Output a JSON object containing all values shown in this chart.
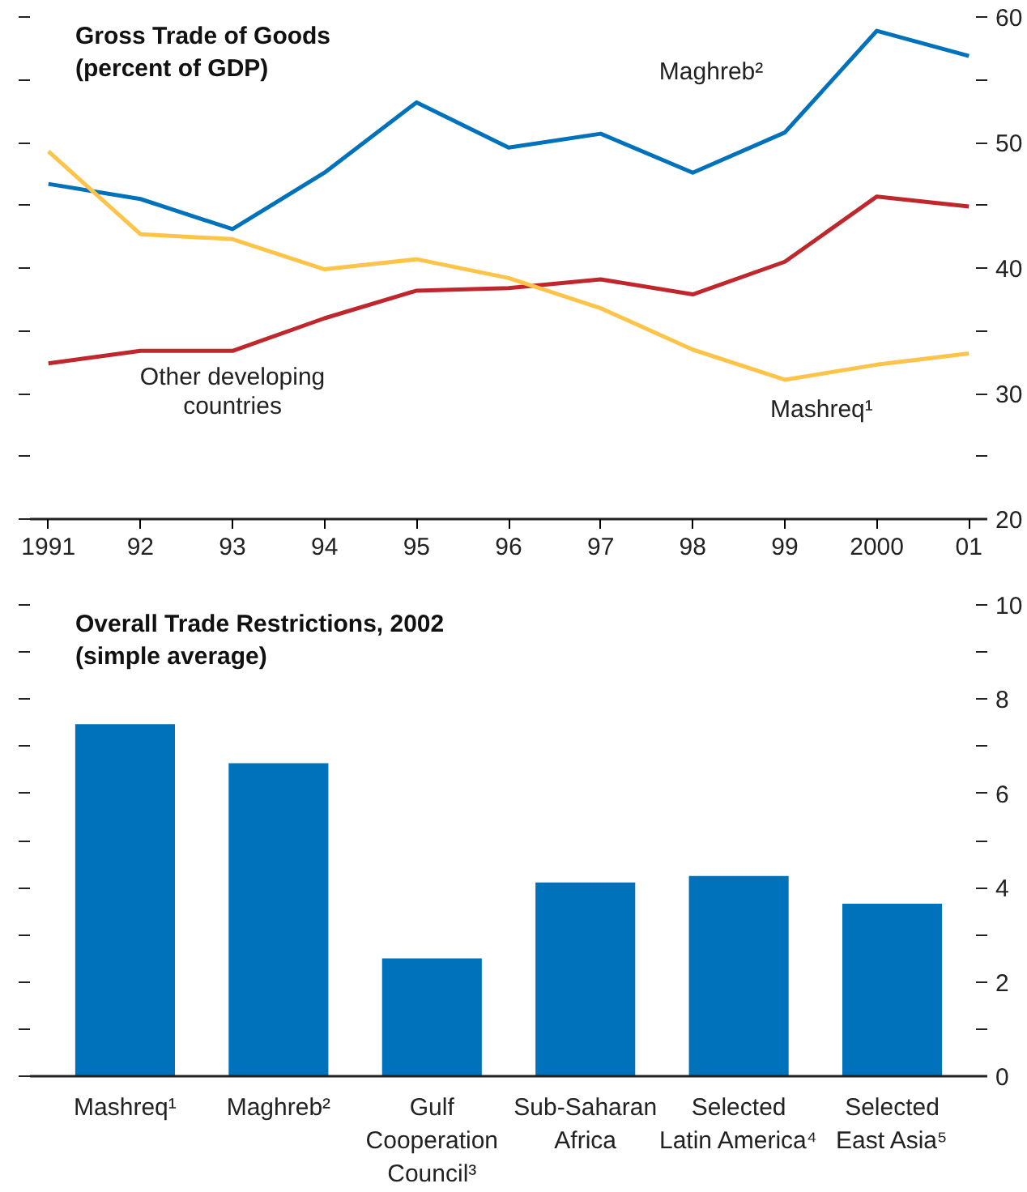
{
  "chart_data": [
    {
      "type": "line",
      "title": "Gross Trade of Goods",
      "subtitle": "(percent of GDP)",
      "x": [
        1991,
        1992,
        1993,
        1994,
        1995,
        1996,
        1997,
        1998,
        1999,
        2000,
        2001
      ],
      "series": [
        {
          "name": "Maghreb²",
          "color": "#0072bc",
          "values": [
            46.7,
            45.5,
            43.1,
            47.6,
            53.2,
            49.6,
            50.7,
            47.6,
            50.8,
            58.9,
            56.9
          ]
        },
        {
          "name": "Other developing countries",
          "color": "#c0272d",
          "values": [
            32.4,
            33.4,
            33.4,
            36.0,
            38.2,
            38.4,
            39.1,
            37.9,
            40.5,
            45.7,
            44.9
          ]
        },
        {
          "name": "Mashreq¹",
          "color": "#fdc449",
          "values": [
            49.3,
            42.7,
            42.3,
            39.9,
            40.7,
            39.2,
            36.8,
            33.5,
            31.1,
            32.3,
            33.2
          ]
        }
      ],
      "xlim": [
        1990.8,
        2001.2
      ],
      "ylim": [
        20,
        60
      ],
      "xticks": [
        1991,
        {
          "value": 1992,
          "label": "92"
        },
        {
          "value": 1993,
          "label": "93"
        },
        {
          "value": 1994,
          "label": "94"
        },
        {
          "value": 1995,
          "label": "95"
        },
        {
          "value": 1996,
          "label": "96"
        },
        {
          "value": 1997,
          "label": "97"
        },
        {
          "value": 1998,
          "label": "98"
        },
        {
          "value": 1999,
          "label": "99"
        },
        2000,
        {
          "value": 2001,
          "label": "01"
        }
      ],
      "yticks": [
        20,
        {
          "value": 25,
          "label": null
        },
        30,
        {
          "value": 35,
          "label": null
        },
        40,
        {
          "value": 45,
          "label": null
        },
        50,
        {
          "value": 55,
          "label": null
        },
        60
      ]
    },
    {
      "type": "bar",
      "title": "Overall Trade Restrictions, 2002",
      "subtitle": "(simple average)",
      "categories": [
        "Mashreq¹",
        "Maghreb²",
        "Gulf Cooperation Council³",
        "Sub-Saharan Africa",
        "Selected Latin America⁴",
        "Selected East Asia⁵"
      ],
      "values": [
        7.47,
        6.64,
        2.5,
        4.11,
        4.25,
        3.66
      ],
      "color": "#0072bc",
      "ylim": [
        0,
        10
      ],
      "yticks": [
        0,
        {
          "value": 1,
          "label": null
        },
        2,
        {
          "value": 3,
          "label": null
        },
        4,
        {
          "value": 5,
          "label": null
        },
        6,
        {
          "value": 7,
          "label": null
        },
        8,
        {
          "value": 9,
          "label": null
        },
        10
      ]
    }
  ]
}
